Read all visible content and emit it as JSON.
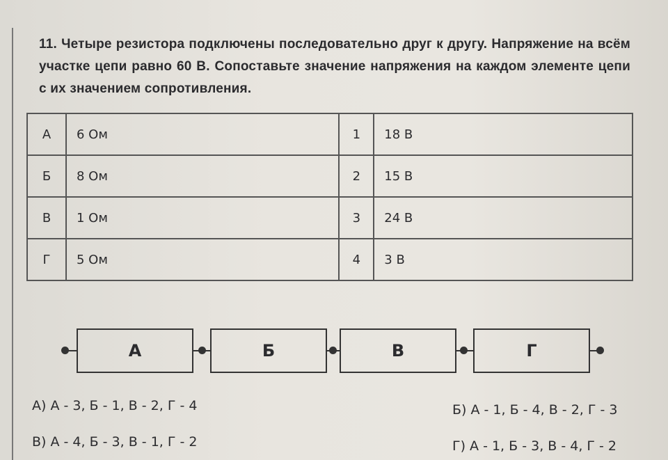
{
  "task": {
    "text": "11. Четыре резистора подключены последовательно друг к другу. Напряжение на всём участке цепи равно 60 В. Сопоставьте значение напряжения на каждом элементе цепи с их значением сопротивления."
  },
  "table": {
    "rows": [
      {
        "letter": "А",
        "resistance": "6 Ом",
        "number": "1",
        "voltage": "18 В"
      },
      {
        "letter": "Б",
        "resistance": "8 Ом",
        "number": "2",
        "voltage": "15 В"
      },
      {
        "letter": "В",
        "resistance": "1 Ом",
        "number": "3",
        "voltage": "24 В"
      },
      {
        "letter": "Г",
        "resistance": "5 Ом",
        "number": "4",
        "voltage": "3 В"
      }
    ]
  },
  "circuit": {
    "resistors": [
      "А",
      "Б",
      "В",
      "Г"
    ]
  },
  "answers": [
    "А) А - 3, Б - 1, В - 2, Г - 4",
    "Б) А - 1, Б - 4, В - 2, Г - 3",
    "В) А - 4, Б - 3, В - 1, Г - 2",
    "Г) А - 1, Б - 3, В - 4, Г - 2"
  ]
}
